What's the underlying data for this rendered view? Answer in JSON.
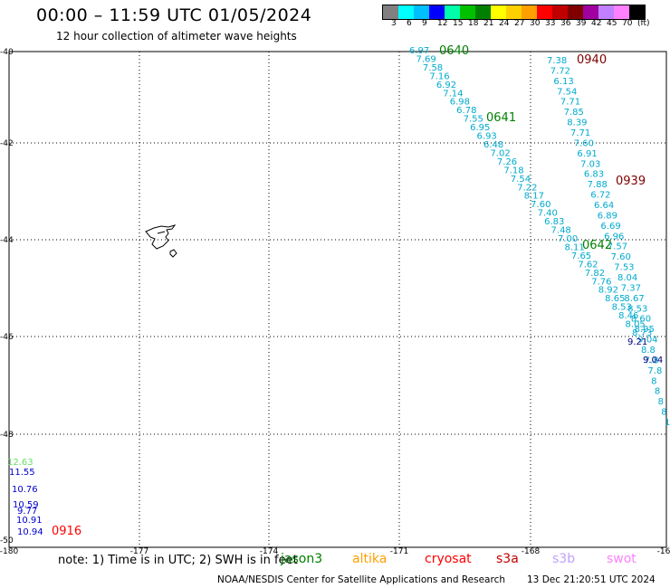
{
  "title": "00:00 – 11:59 UTC 01/05/2024",
  "subtitle": "12 hour collection of altimeter wave heights",
  "legend": {
    "unit": "(ft)",
    "colors": [
      "#808080",
      "#00ffff",
      "#00bfff",
      "#0000ff",
      "#00ffaa",
      "#00c000",
      "#008000",
      "#ffff00",
      "#ffd000",
      "#ffa000",
      "#ff0000",
      "#c00000",
      "#800000",
      "#a000a0",
      "#c080ff",
      "#ff80ff",
      "#000000"
    ],
    "labels": [
      "3",
      "6",
      "9",
      "12",
      "15",
      "18",
      "21",
      "24",
      "27",
      "30",
      "33",
      "36",
      "39",
      "42",
      "45",
      "70"
    ]
  },
  "axes": {
    "lat_labels": [
      "-40",
      "-42",
      "-44",
      "-46",
      "-48",
      "-50"
    ],
    "lon_labels": [
      "-180",
      "-177",
      "-174",
      "-171",
      "-168",
      "-16"
    ]
  },
  "passes": [
    {
      "label": "0640",
      "color": "#008000"
    },
    {
      "label": "0641",
      "color": "#008000"
    },
    {
      "label": "0642",
      "color": "#008000"
    },
    {
      "label": "0940",
      "color": "#800000"
    },
    {
      "label": "0939",
      "color": "#800000"
    },
    {
      "label": "0916",
      "color": "#ff0000"
    }
  ],
  "track_a": {
    "color": "#00aacc",
    "values": [
      "6.97",
      "7.69",
      "7.58",
      "7.16",
      "6.92",
      "7.14",
      "6.98",
      "6.78",
      "7.55",
      "6.95",
      "6.93",
      "6.48",
      "7.02",
      "7.26",
      "7.18",
      "7.54",
      "7.22",
      "8.17",
      "7.60",
      "7.40",
      "6.83",
      "7.48",
      "7.00",
      "8.11",
      "7.65",
      "7.62",
      "7.82",
      "7.76",
      "8.92",
      "8.65",
      "8.53",
      "8.46",
      "8.05",
      "8.73"
    ]
  },
  "track_b": {
    "color": "#00aacc",
    "values": [
      "7.38",
      "7.72",
      "6.13",
      "7.54",
      "7.71",
      "7.85",
      "8.39",
      "7.71",
      "7.60",
      "6.91",
      "7.03",
      "6.83",
      "7.88",
      "6.72",
      "6.64",
      "6.89",
      "6.69",
      "6.96",
      "7.57",
      "7.60",
      "7.53",
      "8.04",
      "7.37",
      "8.67",
      "8.53",
      "8.60",
      "8.95",
      "9.04",
      "8.8",
      "7.8",
      "7.8",
      "8",
      "8",
      "8",
      "8",
      "1"
    ]
  },
  "track_c": {
    "values": [
      {
        "v": "12.63",
        "c": "#66dd66"
      },
      {
        "v": "11.55",
        "c": "#0000cc"
      },
      {
        "v": "10.76",
        "c": "#0000cc"
      },
      {
        "v": "10.59",
        "c": "#0000cc"
      },
      {
        "v": "9.77",
        "c": "#0000cc"
      },
      {
        "v": "10.91",
        "c": "#0000cc"
      },
      {
        "v": "10.94",
        "c": "#0000cc"
      }
    ]
  },
  "extra_values": [
    {
      "v": "9.21",
      "c": "#000080"
    },
    {
      "v": "9.04",
      "c": "#000080"
    }
  ],
  "footer": {
    "note": "note:  1) Time is in UTC; 2) SWH is in feet",
    "credit": "NOAA/NESDIS Center for Satellite Applications and Research",
    "timestamp": "13 Dec 21:20:51 UTC 2024",
    "satellites": [
      {
        "name": "jason3",
        "color": "#008000"
      },
      {
        "name": "altika",
        "color": "#ffa000"
      },
      {
        "name": "cryosat",
        "color": "#ff0000"
      },
      {
        "name": "s3a",
        "color": "#c00000"
      },
      {
        "name": "s3b",
        "color": "#c0a0ff"
      },
      {
        "name": "swot",
        "color": "#ff80ff"
      }
    ]
  }
}
